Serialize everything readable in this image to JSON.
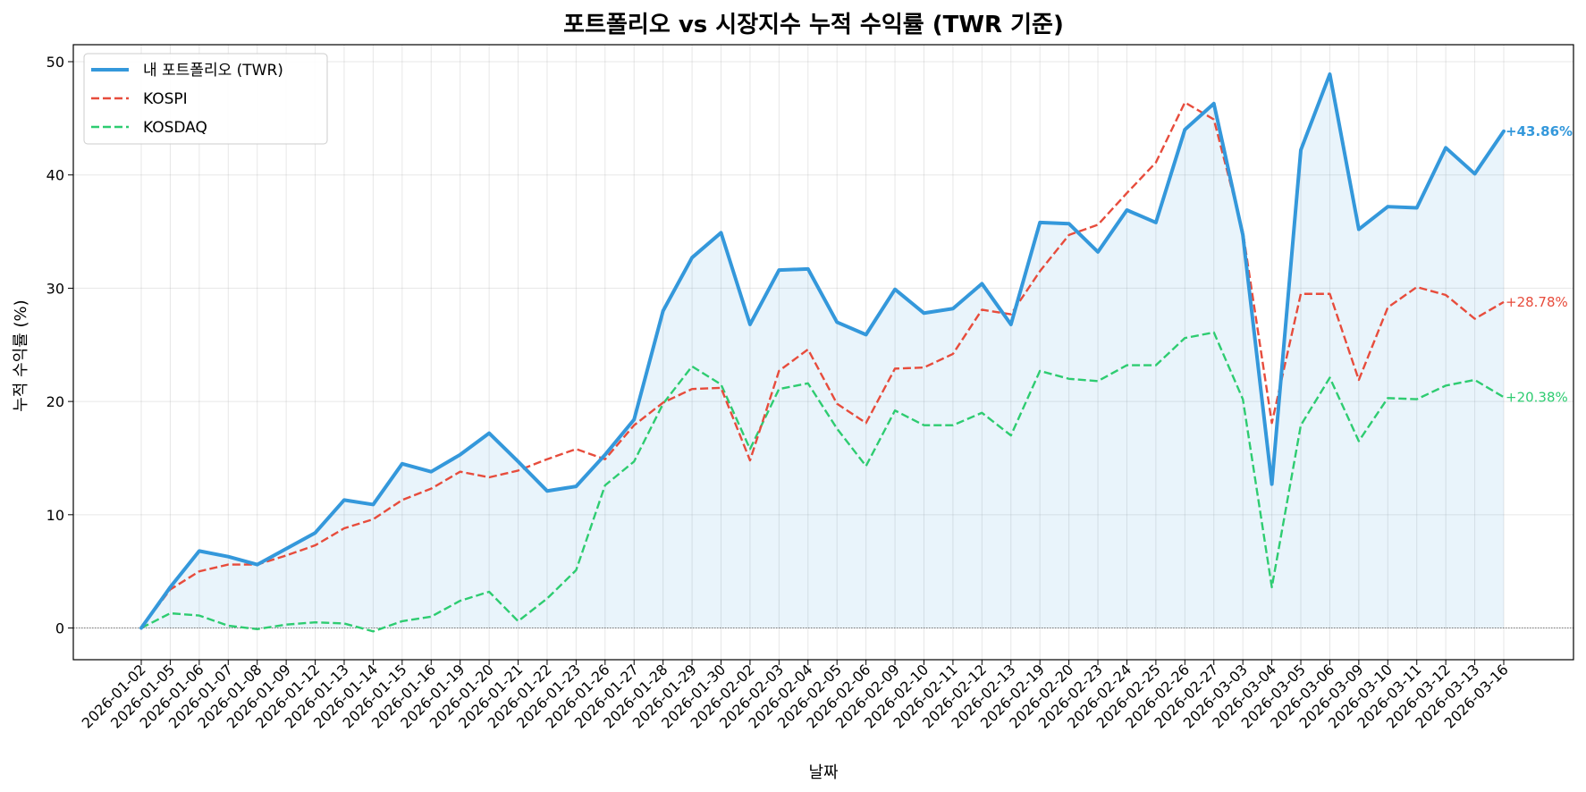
{
  "chart_data": {
    "type": "line",
    "title": "포트폴리오 vs 시장지수 누적 수익률 (TWR 기준)",
    "xlabel": "날짜",
    "ylabel": "누적 수익률 (%)",
    "ylim": [
      -2.8,
      51.5
    ],
    "yticks": [
      0,
      10,
      20,
      30,
      40,
      50
    ],
    "grid": true,
    "legend_position": "top-left",
    "x": [
      "2026-01-02",
      "2026-01-05",
      "2026-01-06",
      "2026-01-07",
      "2026-01-08",
      "2026-01-09",
      "2026-01-12",
      "2026-01-13",
      "2026-01-14",
      "2026-01-15",
      "2026-01-16",
      "2026-01-19",
      "2026-01-20",
      "2026-01-21",
      "2026-01-22",
      "2026-01-23",
      "2026-01-26",
      "2026-01-27",
      "2026-01-28",
      "2026-01-29",
      "2026-01-30",
      "2026-02-02",
      "2026-02-03",
      "2026-02-04",
      "2026-02-05",
      "2026-02-06",
      "2026-02-09",
      "2026-02-10",
      "2026-02-11",
      "2026-02-12",
      "2026-02-13",
      "2026-02-19",
      "2026-02-20",
      "2026-02-23",
      "2026-02-24",
      "2026-02-25",
      "2026-02-26",
      "2026-02-27",
      "2026-03-03",
      "2026-03-04",
      "2026-03-05",
      "2026-03-06",
      "2026-03-09",
      "2026-03-10",
      "2026-03-11",
      "2026-03-12",
      "2026-03-13",
      "2026-03-16"
    ],
    "series": [
      {
        "name": "내 포트폴리오 (TWR)",
        "color": "#3498db",
        "style": "solid",
        "fill": true,
        "end_label": "+43.86%",
        "values": [
          0.0,
          3.6,
          6.8,
          6.3,
          5.6,
          7.0,
          8.4,
          11.3,
          10.9,
          14.5,
          13.8,
          15.3,
          17.2,
          14.7,
          12.1,
          12.5,
          15.3,
          18.4,
          28.0,
          32.7,
          34.9,
          26.8,
          31.6,
          31.7,
          27.0,
          25.9,
          29.9,
          27.8,
          28.2,
          30.4,
          26.8,
          35.8,
          35.7,
          33.2,
          36.9,
          35.8,
          44.0,
          46.3,
          34.7,
          12.7,
          42.2,
          48.9,
          35.2,
          37.2,
          37.1,
          42.4,
          40.1,
          43.86
        ]
      },
      {
        "name": "KOSPI",
        "color": "#e74c3c",
        "style": "dashed",
        "end_label": "+28.78%",
        "values": [
          0.0,
          3.4,
          5.0,
          5.6,
          5.6,
          6.4,
          7.3,
          8.8,
          9.6,
          11.3,
          12.3,
          13.8,
          13.3,
          13.9,
          14.9,
          15.8,
          14.9,
          17.9,
          19.9,
          21.1,
          21.2,
          14.8,
          22.7,
          24.6,
          19.8,
          18.1,
          22.9,
          23.0,
          24.2,
          28.1,
          27.7,
          31.5,
          34.7,
          35.6,
          38.4,
          41.1,
          46.4,
          44.9,
          35.0,
          18.1,
          29.5,
          29.5,
          21.9,
          28.3,
          30.1,
          29.4,
          27.3,
          28.78
        ]
      },
      {
        "name": "KOSDAQ",
        "color": "#2ecc71",
        "style": "dashed",
        "end_label": "+20.38%",
        "values": [
          0.0,
          1.3,
          1.1,
          0.2,
          -0.1,
          0.3,
          0.5,
          0.4,
          -0.3,
          0.6,
          1.0,
          2.4,
          3.2,
          0.6,
          2.6,
          5.1,
          12.6,
          14.7,
          19.8,
          23.1,
          21.5,
          15.8,
          21.1,
          21.6,
          17.6,
          14.3,
          19.2,
          17.9,
          17.9,
          19.0,
          17.0,
          22.7,
          22.0,
          21.8,
          23.2,
          23.2,
          25.6,
          26.1,
          20.2,
          3.6,
          17.9,
          22.1,
          16.5,
          20.3,
          20.2,
          21.4,
          21.9,
          20.38
        ]
      }
    ]
  }
}
